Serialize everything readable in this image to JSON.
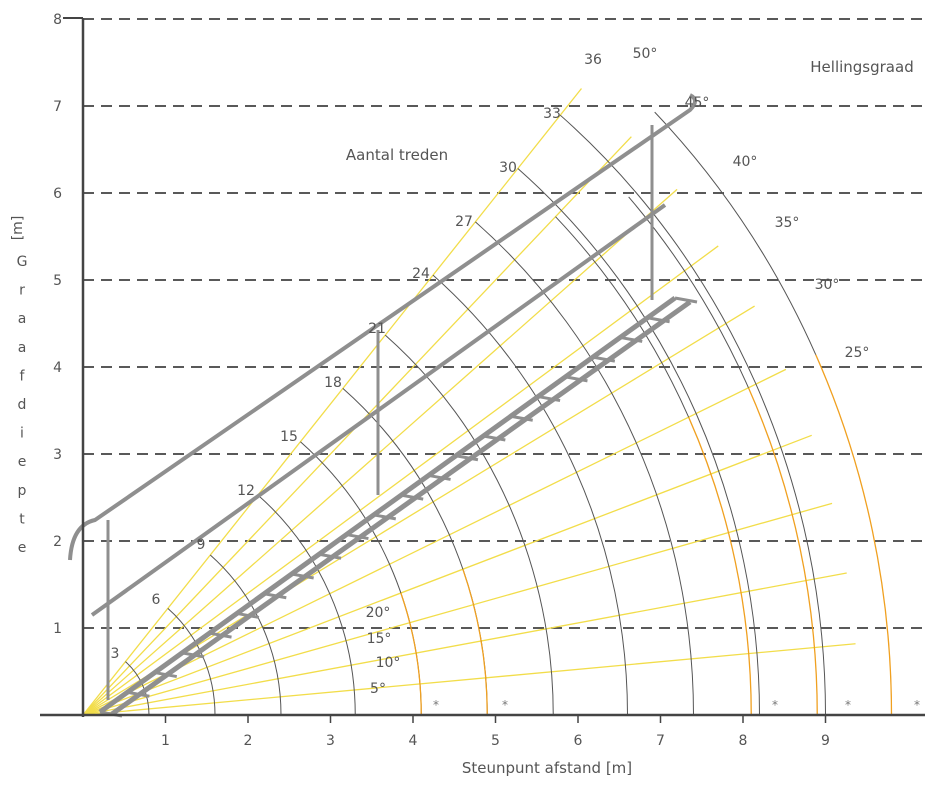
{
  "diagram": {
    "axes": {
      "x_label": "Steunpunt afstand [m]",
      "y_label_unit": "[m]",
      "y_label_chars": [
        "G",
        "r",
        "a",
        "a",
        "f",
        "d",
        "i",
        "e",
        "p",
        "t",
        "e"
      ],
      "x_ticks": [
        "1",
        "2",
        "3",
        "4",
        "5",
        "6",
        "7",
        "8",
        "9"
      ],
      "y_ticks": [
        "1",
        "2",
        "3",
        "4",
        "5",
        "6",
        "7",
        "8"
      ]
    },
    "labels": {
      "angle_heading": "Hellingsgraad",
      "steps_heading": "Aantal treden"
    },
    "angle_labels": [
      "5°",
      "10°",
      "15°",
      "20°",
      "25°",
      "30°",
      "35°",
      "40°",
      "45°",
      "50°"
    ],
    "step_labels": [
      "3",
      "6",
      "9",
      "12",
      "15",
      "18",
      "21",
      "24",
      "27",
      "30",
      "33",
      "36"
    ],
    "star_symbol": "*",
    "colors": {
      "ray": "#f2dd4a",
      "arc_gray": "#555555",
      "arc_orange": "#f0a020",
      "ladder": "#8f8f8f",
      "grid": "#222222"
    }
  }
}
